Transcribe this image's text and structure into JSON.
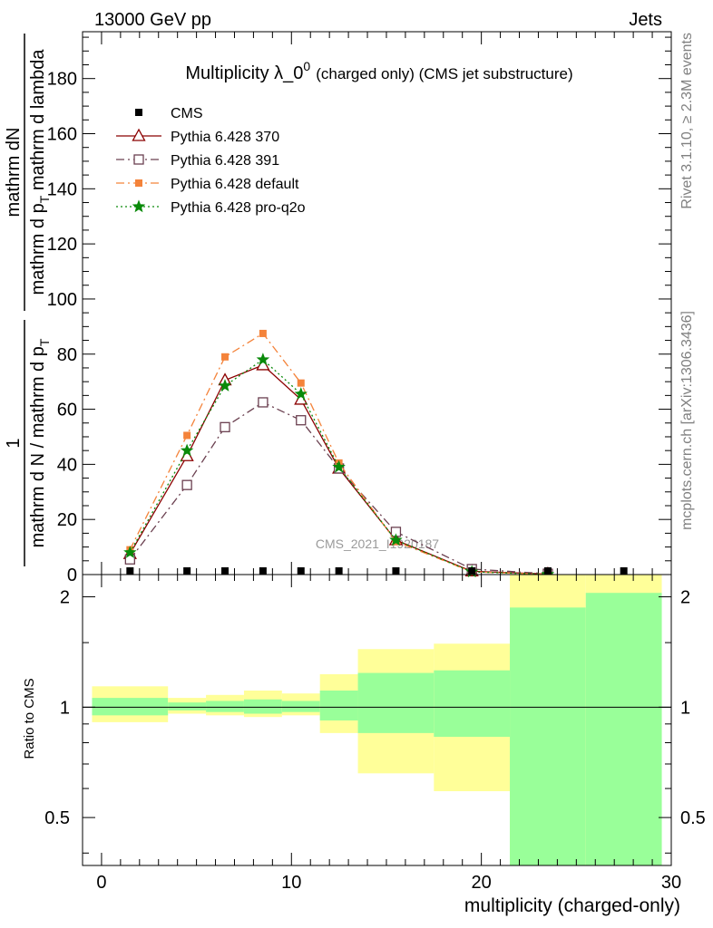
{
  "header": {
    "left": "13000 GeV pp",
    "right": "Jets"
  },
  "side_labels": {
    "rivet": "Rivet 3.1.10, ≥ 2.3M events",
    "mcplots": "mcplots.cern.ch [arXiv:1306.3436]"
  },
  "watermark": "CMS_2021_I1920187",
  "chart_data": [
    {
      "type": "line",
      "title": "Multiplicity λ_0",
      "title_sup": "0",
      "subtitle": "(charged only) (CMS jet substructure)",
      "ylabel_num": "mathrm dN",
      "ylabel_den": "mathrm d p",
      "ylabel_den_sub": "T",
      "ylabel_den_rest": " mathrm d lambda",
      "ylabel_prefix_num": "1",
      "ylabel_prefix_den": "mathrm d N / mathrm d p",
      "ylabel_prefix_den_sub": "T",
      "ylim": [
        0,
        197
      ],
      "xlim": [
        -1,
        30
      ],
      "yticks": [
        0,
        20,
        40,
        60,
        80,
        100,
        120,
        140,
        160,
        180
      ],
      "legend_position": "top-left",
      "data": {
        "name": "CMS",
        "x": [
          1.5,
          4.5,
          6.5,
          8.5,
          10.5,
          12.5,
          15.5,
          19.5,
          23.5,
          27.5
        ],
        "y": [
          0.2,
          0.2,
          0.2,
          0.2,
          0.2,
          0.2,
          0.2,
          0.2,
          0.2,
          0.2
        ]
      },
      "series": [
        {
          "name": "Pythia 6.428 370",
          "color": "#8b0000",
          "x": [
            1.5,
            4.5,
            6.5,
            8.5,
            10.5,
            12.5,
            15.5,
            19.5,
            23.5
          ],
          "y": [
            7.5,
            43.0,
            70.5,
            76.0,
            63.5,
            38.5,
            12.5,
            1.2,
            0.2
          ]
        },
        {
          "name": "Pythia 6.428 391",
          "color": "#6b4050",
          "x": [
            1.5,
            4.5,
            6.5,
            8.5,
            10.5,
            12.5,
            15.5,
            19.5,
            23.5
          ],
          "y": [
            5.5,
            32.5,
            53.5,
            62.5,
            56.0,
            38.5,
            15.5,
            2.0,
            0.3
          ]
        },
        {
          "name": "Pythia 6.428 default",
          "color": "#f4833a",
          "x": [
            1.5,
            4.5,
            6.5,
            8.5,
            10.5,
            12.5,
            15.5,
            19.5,
            23.5
          ],
          "y": [
            9.0,
            50.5,
            79.0,
            87.5,
            69.5,
            40.5,
            12.0,
            1.0,
            0.1
          ]
        },
        {
          "name": "Pythia 6.428 pro-q2o",
          "color": "#0a8a0a",
          "x": [
            1.5,
            4.5,
            6.5,
            8.5,
            10.5,
            12.5,
            15.5,
            19.5,
            23.5
          ],
          "y": [
            8.0,
            45.0,
            68.5,
            78.0,
            65.5,
            39.0,
            12.5,
            1.0,
            0.1
          ]
        }
      ]
    },
    {
      "type": "area",
      "ylabel": "Ratio to CMS",
      "xlabel": "multiplicity (charged-only)",
      "log_y": true,
      "ylim": [
        0.37,
        2.3
      ],
      "xlim": [
        -1,
        30
      ],
      "xticks": [
        0,
        10,
        20,
        30
      ],
      "yticks": [
        0.5,
        1,
        2
      ],
      "bins": [
        {
          "x0": -0.5,
          "x1": 3.5,
          "inner": [
            0.95,
            1.06
          ],
          "outer": [
            0.91,
            1.14
          ]
        },
        {
          "x0": 3.5,
          "x1": 5.5,
          "inner": [
            0.98,
            1.03
          ],
          "outer": [
            0.96,
            1.06
          ]
        },
        {
          "x0": 5.5,
          "x1": 7.5,
          "inner": [
            0.97,
            1.04
          ],
          "outer": [
            0.95,
            1.08
          ]
        },
        {
          "x0": 7.5,
          "x1": 9.5,
          "inner": [
            0.96,
            1.05
          ],
          "outer": [
            0.94,
            1.11
          ]
        },
        {
          "x0": 9.5,
          "x1": 11.5,
          "inner": [
            0.97,
            1.04
          ],
          "outer": [
            0.95,
            1.09
          ]
        },
        {
          "x0": 11.5,
          "x1": 13.5,
          "inner": [
            0.92,
            1.11
          ],
          "outer": [
            0.85,
            1.23
          ]
        },
        {
          "x0": 13.5,
          "x1": 17.5,
          "inner": [
            0.85,
            1.24
          ],
          "outer": [
            0.66,
            1.44
          ]
        },
        {
          "x0": 17.5,
          "x1": 21.5,
          "inner": [
            0.83,
            1.26
          ],
          "outer": [
            0.59,
            1.49
          ]
        },
        {
          "x0": 21.5,
          "x1": 25.5,
          "inner": [
            0.3,
            1.87
          ],
          "outer": [
            0.3,
            2.4
          ]
        },
        {
          "x0": 25.5,
          "x1": 29.5,
          "inner": [
            0.3,
            2.05
          ],
          "outer": [
            0.3,
            2.4
          ]
        }
      ]
    }
  ]
}
